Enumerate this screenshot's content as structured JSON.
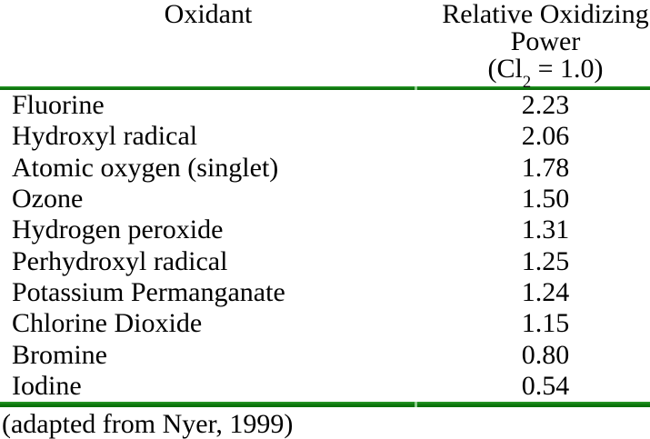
{
  "table": {
    "header": {
      "col1_label": "Oxidant",
      "col2_line1": "Relative Oxidizing",
      "col2_line2": "Power",
      "col2_cl_prefix": "(Cl",
      "col2_cl_sub": "2",
      "col2_cl_suffix": " = 1.0)"
    },
    "rows": [
      {
        "oxidant": "Fluorine",
        "power": "2.23"
      },
      {
        "oxidant": "Hydroxyl radical",
        "power": "2.06"
      },
      {
        "oxidant": "Atomic oxygen (singlet)",
        "power": "1.78"
      },
      {
        "oxidant": "Ozone",
        "power": "1.50"
      },
      {
        "oxidant": "Hydrogen peroxide",
        "power": "1.31"
      },
      {
        "oxidant": "Perhydroxyl radical",
        "power": "1.25"
      },
      {
        "oxidant": "Potassium Permanganate",
        "power": "1.24"
      },
      {
        "oxidant": "Chlorine Dioxide",
        "power": "1.15"
      },
      {
        "oxidant": "Bromine",
        "power": "0.80"
      },
      {
        "oxidant": "Iodine",
        "power": "0.54"
      }
    ],
    "caption": "(adapted from Nyer, 1999)"
  },
  "colors": {
    "rule_green": "#0c770c",
    "rule_seam_light": "#8fce8f",
    "text": "#000000",
    "background": "#ffffff"
  },
  "chart_data": {
    "type": "table",
    "columns": [
      "Oxidant",
      "Relative Oxidizing Power (Cl2 = 1.0)"
    ],
    "rows": [
      [
        "Fluorine",
        2.23
      ],
      [
        "Hydroxyl radical",
        2.06
      ],
      [
        "Atomic oxygen (singlet)",
        1.78
      ],
      [
        "Ozone",
        1.5
      ],
      [
        "Hydrogen peroxide",
        1.31
      ],
      [
        "Perhydroxyl radical",
        1.25
      ],
      [
        "Potassium Permanganate",
        1.24
      ],
      [
        "Chlorine Dioxide",
        1.15
      ],
      [
        "Bromine",
        0.8
      ],
      [
        "Iodine",
        0.54
      ]
    ],
    "note": "(adapted from Nyer, 1999)"
  }
}
